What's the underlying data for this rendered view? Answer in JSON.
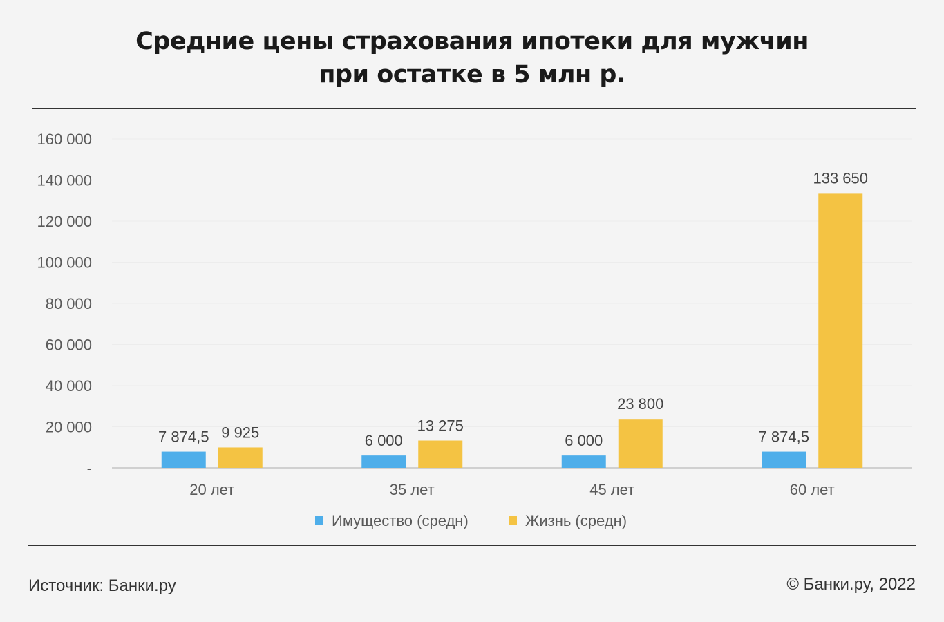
{
  "title_line1": "Средние цены страхования ипотеки для мужчин",
  "title_line2": "при остатке в 5 млн р.",
  "footer": {
    "source": "Источник: Банки.ру",
    "copyright": "© Банки.ру, 2022"
  },
  "colors": {
    "series1": "#4eaeea",
    "series2": "#f4c343"
  },
  "chart_data": {
    "type": "bar",
    "title": "Средние цены страхования ипотеки для мужчин при остатке в 5 млн р.",
    "categories": [
      "20 лет",
      "35 лет",
      "45 лет",
      "60 лет"
    ],
    "series": [
      {
        "name": "Имущество (средн)",
        "values": [
          7874.5,
          6000,
          6000,
          7874.5
        ],
        "labels": [
          "7 874,5",
          "6 000",
          "6 000",
          "7 874,5"
        ]
      },
      {
        "name": "Жизнь (средн)",
        "values": [
          9925,
          13275,
          23800,
          133650
        ],
        "labels": [
          "9 925",
          "13 275",
          "23 800",
          "133 650"
        ]
      }
    ],
    "ylim": [
      0,
      160000
    ],
    "yticks": [
      0,
      20000,
      40000,
      60000,
      80000,
      100000,
      120000,
      140000,
      160000
    ],
    "ytick_labels": [
      "-",
      "20 000",
      "40 000",
      "60 000",
      "80 000",
      "100 000",
      "120 000",
      "140 000",
      "160 000"
    ],
    "grid": true,
    "legend": "bottom"
  }
}
